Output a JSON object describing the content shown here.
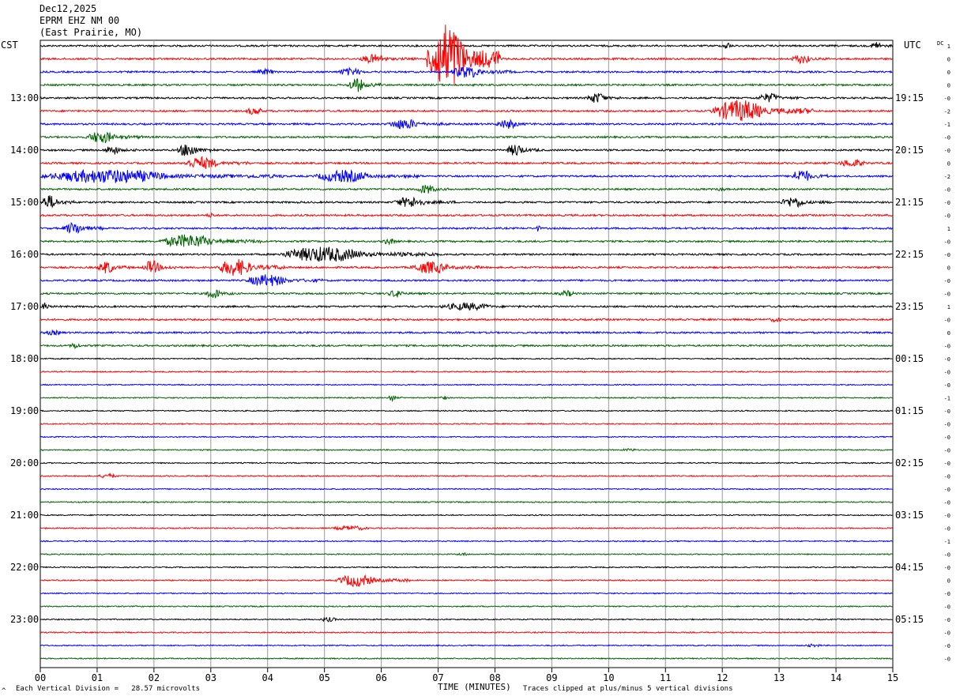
{
  "header": {
    "date": "Dec12,2025",
    "station": "EPRM EHZ NM 00",
    "location": "(East Prairie, MO)"
  },
  "left_zone": "CST",
  "right_zone": "UTC",
  "dc_label": "DC",
  "footer": {
    "scale_note": "Each Vertical Division =   28.57 microvolts",
    "axis_title": "TIME (MINUTES)",
    "clip_note": "Traces clipped at plus/minus 5 vertical divisions",
    "corner_mark": "^"
  },
  "colors": {
    "trace_cycle": [
      "#000000",
      "#ff0000",
      "#0000ff",
      "#006400"
    ],
    "grid": "#999999"
  },
  "chart_data": {
    "type": "line",
    "title": "EPRM EHZ NM 00 (East Prairie, MO) Dec12,2025",
    "xlabel": "TIME (MINUTES)",
    "xlim": [
      0,
      15
    ],
    "x_ticks": [
      "00",
      "01",
      "02",
      "03",
      "04",
      "05",
      "06",
      "07",
      "08",
      "09",
      "10",
      "11",
      "12",
      "13",
      "14",
      "15"
    ],
    "trace_interval_minutes": 15,
    "trace_count": 48,
    "left_time_labels": [
      {
        "trace": 4,
        "label": "13:00"
      },
      {
        "trace": 8,
        "label": "14:00"
      },
      {
        "trace": 12,
        "label": "15:00"
      },
      {
        "trace": 16,
        "label": "16:00"
      },
      {
        "trace": 20,
        "label": "17:00"
      },
      {
        "trace": 24,
        "label": "18:00"
      },
      {
        "trace": 28,
        "label": "19:00"
      },
      {
        "trace": 32,
        "label": "20:00"
      },
      {
        "trace": 36,
        "label": "21:00"
      },
      {
        "trace": 40,
        "label": "22:00"
      },
      {
        "trace": 44,
        "label": "23:00"
      }
    ],
    "right_time_labels": [
      {
        "trace": 4,
        "label": "19:15"
      },
      {
        "trace": 8,
        "label": "20:15"
      },
      {
        "trace": 12,
        "label": "21:15"
      },
      {
        "trace": 16,
        "label": "22:15"
      },
      {
        "trace": 20,
        "label": "23:15"
      },
      {
        "trace": 24,
        "label": "00:15"
      },
      {
        "trace": 28,
        "label": "01:15"
      },
      {
        "trace": 32,
        "label": "02:15"
      },
      {
        "trace": 36,
        "label": "03:15"
      },
      {
        "trace": 40,
        "label": "04:15"
      },
      {
        "trace": 44,
        "label": "05:15"
      }
    ],
    "dc_offsets": [
      "1",
      "0",
      "0",
      "0",
      "-0",
      "-2",
      "-1",
      "-0",
      "-0",
      "0",
      "-2",
      "-0",
      "-0",
      "-0",
      "1",
      "-0",
      "-0",
      "0",
      "-0",
      "-0",
      "1",
      "-0",
      "0",
      "-0",
      "-0",
      "-0",
      "-0",
      "-1",
      "-0",
      "-0",
      "-0",
      "-0",
      "-0",
      "-0",
      "-0",
      "-0",
      "-0",
      "-0",
      "-1",
      "-0",
      "-0",
      "0",
      "-0",
      "-0",
      "-0",
      "-0",
      "-0",
      "-0"
    ],
    "events": [
      {
        "trace": 0,
        "start": 12.0,
        "end": 12.3,
        "amp": 5
      },
      {
        "trace": 0,
        "start": 14.6,
        "end": 15.0,
        "amp": 6
      },
      {
        "trace": 1,
        "start": 5.6,
        "end": 6.6,
        "amp": 6
      },
      {
        "trace": 1,
        "start": 6.8,
        "end": 8.1,
        "amp": 45
      },
      {
        "trace": 1,
        "start": 13.2,
        "end": 13.9,
        "amp": 6
      },
      {
        "trace": 2,
        "start": 3.8,
        "end": 4.4,
        "amp": 4
      },
      {
        "trace": 2,
        "start": 5.2,
        "end": 6.1,
        "amp": 5
      },
      {
        "trace": 2,
        "start": 7.2,
        "end": 8.3,
        "amp": 8
      },
      {
        "trace": 3,
        "start": 5.4,
        "end": 6.0,
        "amp": 9
      },
      {
        "trace": 4,
        "start": 9.6,
        "end": 10.3,
        "amp": 7
      },
      {
        "trace": 4,
        "start": 12.6,
        "end": 13.4,
        "amp": 6
      },
      {
        "trace": 5,
        "start": 3.6,
        "end": 4.2,
        "amp": 5
      },
      {
        "trace": 5,
        "start": 11.8,
        "end": 13.6,
        "amp": 14
      },
      {
        "trace": 6,
        "start": 6.1,
        "end": 7.2,
        "amp": 7
      },
      {
        "trace": 6,
        "start": 8.0,
        "end": 8.8,
        "amp": 6
      },
      {
        "trace": 7,
        "start": 0.8,
        "end": 1.8,
        "amp": 8
      },
      {
        "trace": 8,
        "start": 1.1,
        "end": 1.7,
        "amp": 6
      },
      {
        "trace": 8,
        "start": 2.4,
        "end": 3.1,
        "amp": 9
      },
      {
        "trace": 8,
        "start": 8.2,
        "end": 8.8,
        "amp": 8
      },
      {
        "trace": 9,
        "start": 2.5,
        "end": 3.7,
        "amp": 8
      },
      {
        "trace": 9,
        "start": 14.0,
        "end": 15.0,
        "amp": 5
      },
      {
        "trace": 10,
        "start": 0.0,
        "end": 4.3,
        "amp": 9
      },
      {
        "trace": 10,
        "start": 4.8,
        "end": 6.7,
        "amp": 8
      },
      {
        "trace": 10,
        "start": 13.2,
        "end": 13.9,
        "amp": 9
      },
      {
        "trace": 11,
        "start": 6.6,
        "end": 7.3,
        "amp": 6
      },
      {
        "trace": 11,
        "start": 11.9,
        "end": 12.2,
        "amp": 3
      },
      {
        "trace": 12,
        "start": 0.0,
        "end": 0.6,
        "amp": 9
      },
      {
        "trace": 12,
        "start": 6.2,
        "end": 7.3,
        "amp": 7
      },
      {
        "trace": 12,
        "start": 13.0,
        "end": 13.9,
        "amp": 7
      },
      {
        "trace": 13,
        "start": 2.9,
        "end": 3.3,
        "amp": 3
      },
      {
        "trace": 14,
        "start": 0.4,
        "end": 1.1,
        "amp": 8
      },
      {
        "trace": 14,
        "start": 8.7,
        "end": 8.9,
        "amp": 4
      },
      {
        "trace": 15,
        "start": 2.1,
        "end": 3.9,
        "amp": 9
      },
      {
        "trace": 15,
        "start": 6.0,
        "end": 6.5,
        "amp": 4
      },
      {
        "trace": 16,
        "start": 4.2,
        "end": 7.0,
        "amp": 10
      },
      {
        "trace": 17,
        "start": 1.0,
        "end": 1.6,
        "amp": 8
      },
      {
        "trace": 17,
        "start": 1.8,
        "end": 2.4,
        "amp": 9
      },
      {
        "trace": 17,
        "start": 3.1,
        "end": 4.3,
        "amp": 11
      },
      {
        "trace": 17,
        "start": 6.5,
        "end": 7.8,
        "amp": 8
      },
      {
        "trace": 18,
        "start": 3.6,
        "end": 5.0,
        "amp": 8
      },
      {
        "trace": 19,
        "start": 2.9,
        "end": 3.4,
        "amp": 7
      },
      {
        "trace": 19,
        "start": 6.1,
        "end": 6.7,
        "amp": 5
      },
      {
        "trace": 19,
        "start": 9.1,
        "end": 9.7,
        "amp": 4
      },
      {
        "trace": 20,
        "start": 0.0,
        "end": 0.3,
        "amp": 5
      },
      {
        "trace": 20,
        "start": 7.0,
        "end": 8.8,
        "amp": 5
      },
      {
        "trace": 21,
        "start": 12.8,
        "end": 13.3,
        "amp": 3
      },
      {
        "trace": 22,
        "start": 0.0,
        "end": 0.8,
        "amp": 3
      },
      {
        "trace": 23,
        "start": 0.5,
        "end": 0.9,
        "amp": 4
      },
      {
        "trace": 27,
        "start": 6.1,
        "end": 6.4,
        "amp": 4
      },
      {
        "trace": 27,
        "start": 7.0,
        "end": 7.3,
        "amp": 3
      },
      {
        "trace": 31,
        "start": 10.2,
        "end": 10.8,
        "amp": 2
      },
      {
        "trace": 33,
        "start": 1.0,
        "end": 1.7,
        "amp": 3
      },
      {
        "trace": 37,
        "start": 5.1,
        "end": 6.4,
        "amp": 3
      },
      {
        "trace": 39,
        "start": 7.3,
        "end": 7.8,
        "amp": 2
      },
      {
        "trace": 41,
        "start": 5.2,
        "end": 6.5,
        "amp": 8
      },
      {
        "trace": 44,
        "start": 4.9,
        "end": 5.5,
        "amp": 3
      },
      {
        "trace": 46,
        "start": 13.4,
        "end": 14.1,
        "amp": 2
      }
    ]
  }
}
